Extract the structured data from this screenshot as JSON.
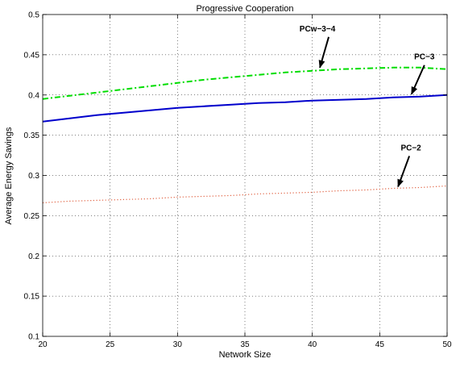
{
  "chart_data": {
    "type": "line",
    "title": "Progressive Cooperation",
    "xlabel": "Network Size",
    "ylabel": "Average Energy Savings",
    "xlim": [
      20,
      50
    ],
    "ylim": [
      0.1,
      0.5
    ],
    "xticks": [
      20,
      25,
      30,
      35,
      40,
      45,
      50
    ],
    "yticks": [
      0.1,
      0.15,
      0.2,
      0.25,
      0.3,
      0.35,
      0.4,
      0.45,
      0.5
    ],
    "xtick_labels": [
      "20",
      "25",
      "30",
      "35",
      "40",
      "45",
      "50"
    ],
    "ytick_labels": [
      "0.1",
      "0.15",
      "0.2",
      "0.25",
      "0.3",
      "0.35",
      "0.4",
      "0.45",
      "0.5"
    ],
    "grid": true,
    "series": [
      {
        "name": "PCw−3−4",
        "color": "#00dd00",
        "style": "dashdot",
        "x": [
          20,
          22,
          24,
          26,
          28,
          30,
          32,
          34,
          36,
          38,
          40,
          42,
          44,
          46,
          48,
          50
        ],
        "y": [
          0.395,
          0.399,
          0.403,
          0.407,
          0.411,
          0.415,
          0.419,
          0.422,
          0.425,
          0.428,
          0.43,
          0.432,
          0.433,
          0.434,
          0.434,
          0.432
        ]
      },
      {
        "name": "PC−3",
        "color": "#0000cc",
        "style": "solid",
        "x": [
          20,
          22,
          24,
          26,
          28,
          30,
          32,
          34,
          36,
          38,
          40,
          42,
          44,
          46,
          48,
          50
        ],
        "y": [
          0.367,
          0.371,
          0.375,
          0.378,
          0.381,
          0.384,
          0.386,
          0.388,
          0.39,
          0.391,
          0.393,
          0.394,
          0.395,
          0.397,
          0.398,
          0.4
        ]
      },
      {
        "name": "PC−2",
        "color": "#e06040",
        "style": "dotted",
        "x": [
          20,
          22,
          24,
          26,
          28,
          30,
          32,
          34,
          36,
          38,
          40,
          42,
          44,
          46,
          48,
          50
        ],
        "y": [
          0.266,
          0.268,
          0.269,
          0.27,
          0.271,
          0.273,
          0.274,
          0.275,
          0.277,
          0.278,
          0.279,
          0.281,
          0.282,
          0.284,
          0.285,
          0.287
        ]
      }
    ],
    "annotations": [
      {
        "text": "PCw−3−4",
        "series": 0,
        "x": 40.5,
        "y": 0.432
      },
      {
        "text": "PC−3",
        "series": 1,
        "x": 47.3,
        "y": 0.399
      },
      {
        "text": "PC−2",
        "series": 2,
        "x": 46.3,
        "y": 0.284
      }
    ]
  }
}
